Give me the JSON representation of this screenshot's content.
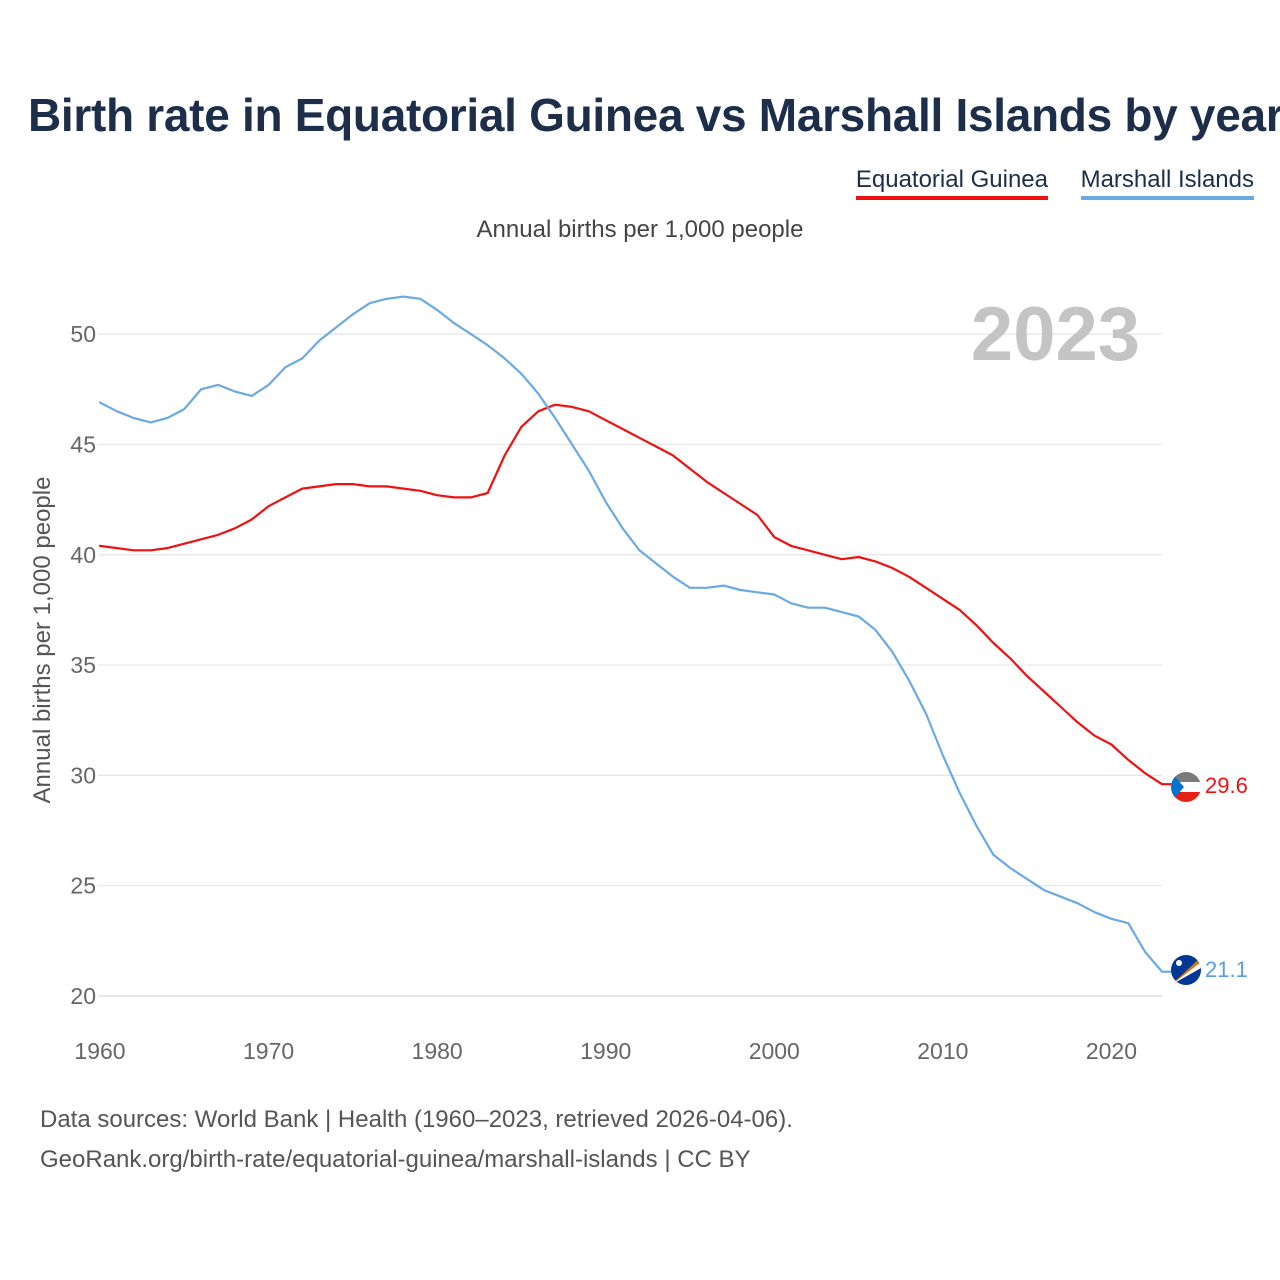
{
  "title": "Birth rate in Equatorial Guinea vs Marshall Islands by year",
  "subtitle": "Annual births per 1,000 people",
  "legend": [
    {
      "name": "Equatorial Guinea",
      "color": "#ee1111"
    },
    {
      "name": "Marshall Islands",
      "color": "#6aaae4"
    }
  ],
  "footer": {
    "sources": "Data sources: World Bank | Health (1960–2023, retrieved 2026-04-06).",
    "link": "GeoRank.org/birth-rate/equatorial-guinea/marshall-islands | CC BY"
  },
  "chart_data": {
    "type": "line",
    "title": "Birth rate in Equatorial Guinea vs Marshall Islands by year",
    "subtitle": "Annual births per 1,000 people",
    "year_label": "2023",
    "xlabel": "",
    "ylabel": "Annual births per 1,000 people",
    "xlim": [
      1960,
      2023
    ],
    "ylim": [
      20,
      52
    ],
    "x_ticks": [
      1960,
      1970,
      1980,
      1990,
      2000,
      2010,
      2020
    ],
    "y_ticks": [
      20,
      25,
      30,
      35,
      40,
      45,
      50
    ],
    "grid": true,
    "legend_position": "top-right",
    "x": [
      1960,
      1961,
      1962,
      1963,
      1964,
      1965,
      1966,
      1967,
      1968,
      1969,
      1970,
      1971,
      1972,
      1973,
      1974,
      1975,
      1976,
      1977,
      1978,
      1979,
      1980,
      1981,
      1982,
      1983,
      1984,
      1985,
      1986,
      1987,
      1988,
      1989,
      1990,
      1991,
      1992,
      1993,
      1994,
      1995,
      1996,
      1997,
      1998,
      1999,
      2000,
      2001,
      2002,
      2003,
      2004,
      2005,
      2006,
      2007,
      2008,
      2009,
      2010,
      2011,
      2012,
      2013,
      2014,
      2015,
      2016,
      2017,
      2018,
      2019,
      2020,
      2021,
      2022,
      2023
    ],
    "series": [
      {
        "name": "Equatorial Guinea",
        "color": "#ee1111",
        "end_label": "29.6",
        "values": [
          40.4,
          40.3,
          40.2,
          40.2,
          40.3,
          40.5,
          40.7,
          40.9,
          41.2,
          41.6,
          42.2,
          42.6,
          43.0,
          43.1,
          43.2,
          43.2,
          43.1,
          43.1,
          43.0,
          42.9,
          42.7,
          42.6,
          42.6,
          42.8,
          44.5,
          45.8,
          46.5,
          46.8,
          46.7,
          46.5,
          46.1,
          45.7,
          45.3,
          44.9,
          44.5,
          43.9,
          43.3,
          42.8,
          42.3,
          41.8,
          40.8,
          40.4,
          40.2,
          40.0,
          39.8,
          39.9,
          39.7,
          39.4,
          39.0,
          38.5,
          38.0,
          37.5,
          36.8,
          36.0,
          35.3,
          34.5,
          33.8,
          33.1,
          32.4,
          31.8,
          31.4,
          30.7,
          30.1,
          29.6
        ]
      },
      {
        "name": "Marshall Islands",
        "color": "#6aaae4",
        "end_label": "21.1",
        "values": [
          46.9,
          46.5,
          46.2,
          46.0,
          46.2,
          46.6,
          47.5,
          47.7,
          47.4,
          47.2,
          47.7,
          48.5,
          48.9,
          49.7,
          50.3,
          50.9,
          51.4,
          51.6,
          51.7,
          51.6,
          51.1,
          50.5,
          50.0,
          49.5,
          48.9,
          48.2,
          47.3,
          46.2,
          45.0,
          43.8,
          42.4,
          41.2,
          40.2,
          39.6,
          39.0,
          38.5,
          38.5,
          38.6,
          38.4,
          38.3,
          38.2,
          37.8,
          37.6,
          37.6,
          37.4,
          37.2,
          36.6,
          35.6,
          34.3,
          32.8,
          30.9,
          29.2,
          27.7,
          26.4,
          25.8,
          25.3,
          24.8,
          24.5,
          24.2,
          23.8,
          23.5,
          23.3,
          22.0,
          21.1
        ]
      }
    ]
  }
}
